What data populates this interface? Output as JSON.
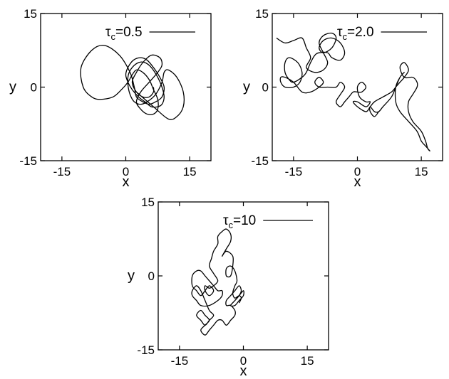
{
  "chart_data": [
    {
      "type": "line",
      "xlabel": "x",
      "ylabel": "y",
      "xlim": [
        -20,
        20
      ],
      "ylim": [
        -15,
        15
      ],
      "xticks": [
        "-15",
        "0",
        "15"
      ],
      "yticks": [
        "-15",
        "0",
        "15"
      ],
      "legend": {
        "symbol": "τ",
        "subscript": "c",
        "value": "=0.5",
        "placement": "top-right"
      },
      "series": [
        {
          "color": "#000000",
          "x": [
            2.5,
            6.5,
            10.0,
            12.0,
            13.5,
            13.5,
            12.0,
            10.0,
            9.0,
            8.5,
            7.0,
            5.0,
            3.5,
            2.0,
            1.0,
            0.5,
            0.6,
            1.5,
            3.0,
            4.5,
            6.0,
            7.5,
            8.5,
            9.0,
            8.5,
            7.5,
            6.0,
            4.5,
            3.0,
            1.5,
            0.5,
            0.0,
            0.5,
            1.8,
            3.5,
            5.0,
            6.5,
            8.0,
            9.0,
            8.5,
            7.0,
            5.5,
            4.0,
            2.5,
            2.0,
            1.0,
            -1.5,
            -5.0,
            -8.0,
            -10.5,
            -10.0,
            -8.0,
            -6.0,
            -3.0,
            -1.0,
            0.5,
            1.5,
            2.5,
            4.0,
            5.5,
            6.5,
            7.5,
            7.5,
            6.5,
            5.0,
            3.5,
            2.5,
            3.5,
            5.5,
            7.5,
            8.5,
            8.0,
            6.0,
            4.0,
            2.5,
            1.5,
            2.5,
            4.0,
            5.5,
            6.5,
            6.5
          ],
          "y": [
            -1.0,
            -4.0,
            -6.5,
            -6.0,
            -4.0,
            -1.0,
            2.0,
            3.5,
            3.0,
            1.0,
            -1.5,
            -3.0,
            -3.5,
            -3.0,
            -1.5,
            0.5,
            2.5,
            4.0,
            5.0,
            5.0,
            4.0,
            2.0,
            0.0,
            -2.0,
            -3.5,
            -4.0,
            -4.0,
            -3.0,
            -2.0,
            -0.5,
            1.0,
            2.5,
            4.0,
            5.5,
            6.0,
            5.5,
            4.0,
            2.0,
            0.0,
            -2.0,
            -3.0,
            -3.5,
            -3.0,
            -2.0,
            0.0,
            3.0,
            6.5,
            8.5,
            7.5,
            4.0,
            0.0,
            -2.0,
            -2.5,
            -2.0,
            -0.5,
            1.0,
            2.5,
            3.5,
            3.0,
            1.5,
            -0.5,
            -2.5,
            -4.5,
            -5.5,
            -5.5,
            -4.5,
            -3.0,
            -1.0,
            1.0,
            3.0,
            4.5,
            6.0,
            6.5,
            5.0,
            3.0,
            1.0,
            -1.0,
            -2.0,
            -2.0,
            -1.0,
            0.0
          ]
        }
      ]
    },
    {
      "type": "line",
      "xlabel": "x",
      "ylabel": "y",
      "xlim": [
        -20,
        20
      ],
      "ylim": [
        -15,
        15
      ],
      "xticks": [
        "-15",
        "0",
        "15"
      ],
      "yticks": [
        "-15",
        "0",
        "15"
      ],
      "legend": {
        "symbol": "τ",
        "subscript": "c",
        "value": "=2.0",
        "placement": "top-right"
      },
      "series": [
        {
          "color": "#000000",
          "x": [
            -19,
            -17,
            -15,
            -13,
            -12,
            -11,
            -12,
            -10,
            -8,
            -7,
            -8,
            -9,
            -8,
            -6,
            -5,
            -6,
            -8,
            -9,
            -8,
            -6,
            -4,
            -3,
            -4,
            -6,
            -7,
            -9,
            -10,
            -11,
            -12,
            -13,
            -15,
            -16,
            -17,
            -17,
            -16,
            -14,
            -13,
            -13.5,
            -15,
            -17,
            -18,
            -18,
            -17,
            -15,
            -13,
            -11,
            -9,
            -8,
            -9,
            -10,
            -9,
            -7,
            -5,
            -4,
            -3,
            -4,
            -5,
            -4,
            -3,
            -2,
            -1,
            0,
            1,
            2,
            1,
            0,
            0.5,
            2,
            3,
            2,
            0,
            -1,
            0,
            2,
            3,
            4,
            6,
            8,
            9,
            10,
            11,
            12,
            11,
            10,
            11,
            13,
            14,
            14,
            13,
            12,
            12,
            13,
            15,
            16,
            16.5,
            17,
            16,
            15,
            14,
            12,
            10,
            9,
            9,
            10,
            11,
            10,
            9,
            8,
            6,
            5,
            4,
            3,
            3,
            4,
            5
          ],
          "y": [
            10,
            9,
            9.5,
            10,
            8,
            6,
            4,
            3,
            3.5,
            5,
            7,
            9,
            10.5,
            11,
            10,
            8,
            7,
            8,
            9.5,
            10,
            9,
            7,
            5.5,
            6,
            7,
            7,
            6.5,
            5,
            3,
            2,
            1,
            1.5,
            3,
            5,
            6,
            5,
            3,
            1,
            0,
            0,
            1,
            2,
            2,
            1,
            -1,
            -1,
            0,
            1,
            2,
            1,
            0,
            0,
            0,
            1,
            0,
            -1.5,
            -3,
            -4,
            -3,
            -2,
            -1,
            -1,
            -1,
            0,
            1,
            0,
            -2,
            -3,
            -3,
            -4,
            -3,
            -3,
            -4,
            -5,
            -4,
            -3,
            -2,
            -1,
            0,
            1,
            2,
            3.5,
            5,
            4,
            2,
            2,
            1,
            0,
            -1.5,
            -3,
            -5,
            -7,
            -9,
            -11,
            -12.5,
            -13,
            -12,
            -11,
            -9,
            -7,
            -5,
            -3,
            0,
            2,
            3,
            2,
            0,
            -2,
            -4,
            -5,
            -5,
            -4,
            -5,
            -6,
            -5
          ]
        }
      ]
    },
    {
      "type": "line",
      "xlabel": "x",
      "ylabel": "y",
      "xlim": [
        -20,
        20
      ],
      "ylim": [
        -15,
        15
      ],
      "xticks": [
        "-15",
        "0",
        "15"
      ],
      "yticks": [
        "-15",
        "0",
        "15"
      ],
      "legend": {
        "symbol": "τ",
        "subscript": "c",
        "value": "=10",
        "placement": "top-right"
      },
      "series": [
        {
          "color": "#000000",
          "x": [
            -1,
            -0.5,
            -1,
            -2,
            -2.5,
            -2,
            -1.5,
            -2,
            -3,
            -4,
            -4,
            -3,
            -2.5,
            -2.5,
            -4,
            -5,
            -4,
            -3,
            -3,
            -4,
            -5,
            -6,
            -6,
            -7,
            -7.5,
            -8,
            -7,
            -6,
            -7,
            -8,
            -9,
            -9,
            -8,
            -7,
            -8,
            -9,
            -10,
            -11,
            -12,
            -12,
            -11,
            -10,
            -9,
            -8,
            -7,
            -6,
            -5,
            -5,
            -6,
            -8,
            -10,
            -11,
            -12,
            -12,
            -11,
            -10,
            -9,
            -8,
            -7,
            -8,
            -9,
            -10,
            -11,
            -10,
            -9,
            -8,
            -9,
            -10,
            -9,
            -8,
            -7,
            -6,
            -5,
            -4,
            -3,
            -2,
            -2,
            -3,
            -4,
            -4,
            -3,
            -2,
            -1,
            -0.5,
            -1,
            -2,
            -3,
            -2,
            -1,
            0,
            0,
            -1,
            -2
          ],
          "y": [
            -5.5,
            -4.5,
            -4,
            -4.5,
            -3.5,
            -2,
            -1,
            1,
            2,
            1.5,
            0,
            0,
            2,
            4,
            5,
            4,
            5.5,
            7,
            8.5,
            9.5,
            9,
            8,
            6.5,
            5,
            3.5,
            2,
            0.5,
            -1,
            -2,
            -2.5,
            -2,
            -3,
            -4,
            -3,
            -2,
            -3,
            -4,
            -3,
            -2,
            0,
            1,
            1,
            0,
            -1,
            -2,
            -3,
            -3,
            -4,
            -5,
            -6,
            -6,
            -5,
            -4,
            -3,
            -2,
            -3,
            -5,
            -7,
            -8,
            -9,
            -10,
            -9,
            -8,
            -7,
            -8,
            -9,
            -10,
            -11,
            -12,
            -11,
            -10,
            -9,
            -9,
            -10,
            -9,
            -8,
            -7,
            -6,
            -6,
            -5,
            -4,
            -3,
            -2,
            -3,
            -4,
            -5,
            -6,
            -6,
            -5,
            -4,
            -3,
            -4,
            -5
          ]
        }
      ]
    }
  ]
}
